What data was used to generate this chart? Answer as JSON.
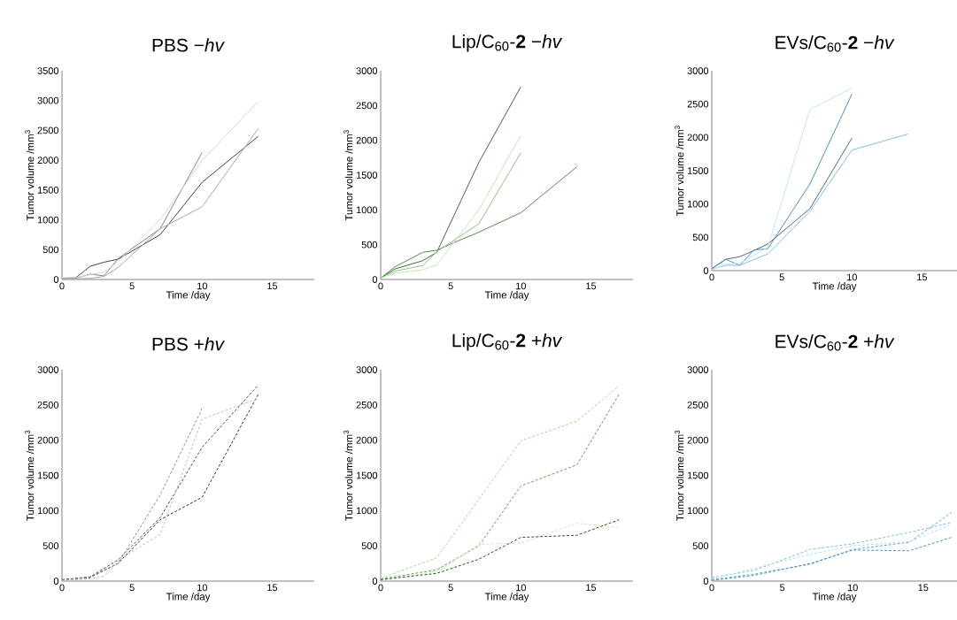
{
  "chart_data": [
    {
      "type": "line",
      "title": "PBS −*hv*",
      "xlabel": "Time /day",
      "ylabel": "Tumor volume /mm$^{3}$",
      "xlim": [
        0,
        18
      ],
      "xticks": [
        0,
        5,
        10,
        15
      ],
      "ylim": [
        0,
        3500
      ],
      "yticks": [
        0,
        500,
        1000,
        1500,
        2000,
        2500,
        3000,
        3500
      ],
      "line_style": "solid",
      "series": [
        {
          "color": "#404040",
          "x": [
            0,
            1,
            2,
            3,
            4,
            7,
            10,
            14
          ],
          "values": [
            20,
            30,
            220,
            290,
            340,
            750,
            1630,
            2400
          ]
        },
        {
          "color": "#858585",
          "x": [
            0,
            1,
            2,
            3,
            4,
            7,
            10
          ],
          "values": [
            20,
            20,
            90,
            60,
            350,
            850,
            2130
          ]
        },
        {
          "color": "#a8a8a8",
          "x": [
            0,
            1,
            2,
            3,
            4,
            7,
            10,
            14
          ],
          "values": [
            10,
            10,
            20,
            50,
            200,
            850,
            1220,
            2530
          ]
        },
        {
          "color": "#d4d4d4",
          "x": [
            0,
            1,
            2,
            3,
            4,
            7,
            10,
            14
          ],
          "values": [
            30,
            30,
            80,
            120,
            300,
            1000,
            2000,
            2980
          ]
        }
      ]
    },
    {
      "type": "line",
      "title": "Lip/C$_{60}$-**2** −*hv*",
      "xlabel": "Time /day",
      "ylabel": "Tumor volume /mm$^{3}$",
      "xlim": [
        0,
        18
      ],
      "xticks": [
        0,
        5,
        10,
        15
      ],
      "ylim": [
        0,
        3000
      ],
      "yticks": [
        0,
        500,
        1000,
        1500,
        2000,
        2500,
        3000
      ],
      "line_style": "solid",
      "series": [
        {
          "color": "#3d6b3d",
          "x": [
            0,
            1,
            3,
            4,
            7,
            10
          ],
          "values": [
            20,
            150,
            270,
            390,
            1680,
            2770
          ]
        },
        {
          "color": "#5a8a50",
          "x": [
            0,
            1,
            3,
            4,
            5,
            7,
            10,
            14
          ],
          "values": [
            20,
            180,
            390,
            420,
            510,
            680,
            960,
            1620
          ]
        },
        {
          "color": "#90c080",
          "x": [
            0,
            1,
            3,
            4,
            7,
            10
          ],
          "values": [
            20,
            120,
            200,
            400,
            800,
            1820
          ]
        },
        {
          "color": "#c4e4b4",
          "x": [
            0,
            1,
            3,
            4,
            7,
            10
          ],
          "values": [
            20,
            90,
            140,
            210,
            1000,
            2070
          ]
        }
      ]
    },
    {
      "type": "line",
      "title": "EVs/C$_{60}$-**2** −*hv*",
      "xlabel": "Time /day",
      "ylabel": "Tumor volume /mm$^{3}$",
      "xlim": [
        0,
        17.5
      ],
      "xticks": [
        0,
        5,
        10,
        15
      ],
      "ylim": [
        0,
        3000
      ],
      "yticks": [
        0,
        500,
        1000,
        1500,
        2000,
        2500,
        3000
      ],
      "line_style": "solid",
      "series": [
        {
          "color": "#4a6a80",
          "x": [
            0,
            1,
            2,
            3,
            4,
            7,
            10
          ],
          "values": [
            30,
            170,
            210,
            300,
            400,
            930,
            1990
          ]
        },
        {
          "color": "#4a90b8",
          "x": [
            0,
            1,
            2,
            3,
            4,
            7,
            10
          ],
          "values": [
            30,
            170,
            80,
            310,
            330,
            1300,
            2650
          ]
        },
        {
          "color": "#80c0e0",
          "x": [
            0,
            1,
            2,
            4,
            7,
            10,
            14
          ],
          "values": [
            20,
            80,
            80,
            250,
            890,
            1810,
            2050
          ]
        },
        {
          "color": "#c4e6f4",
          "x": [
            0,
            1,
            2,
            4,
            7,
            10
          ],
          "values": [
            10,
            100,
            110,
            350,
            2420,
            2740
          ]
        }
      ]
    },
    {
      "type": "line",
      "title": "PBS +*hv*",
      "xlabel": "Time /day",
      "ylabel": "Tumor volume /mm$^{3}$",
      "xlim": [
        0,
        18
      ],
      "xticks": [
        0,
        5,
        10,
        15
      ],
      "ylim": [
        0,
        3000
      ],
      "yticks": [
        0,
        500,
        1000,
        1500,
        2000,
        2500,
        3000
      ],
      "line_style": "dashed",
      "series": [
        {
          "color": "#303030",
          "x": [
            0,
            2,
            4,
            7,
            10,
            14
          ],
          "values": [
            20,
            50,
            250,
            870,
            1190,
            2650
          ]
        },
        {
          "color": "#484848",
          "x": [
            0,
            2,
            4,
            7,
            10,
            14
          ],
          "values": [
            20,
            60,
            300,
            900,
            1900,
            2780
          ]
        },
        {
          "color": "#909090",
          "x": [
            0,
            2,
            4,
            7,
            10
          ],
          "values": [
            10,
            60,
            250,
            1220,
            2450
          ]
        },
        {
          "color": "#c0c0c0",
          "x": [
            0,
            2,
            3,
            4,
            5,
            7,
            10,
            14
          ],
          "values": [
            10,
            30,
            70,
            280,
            420,
            660,
            2300,
            2590
          ]
        }
      ]
    },
    {
      "type": "line",
      "title": "Lip/C$_{60}$-**2** +*hv*",
      "xlabel": "Time /day",
      "ylabel": "Tumor volume /mm$^{3}$",
      "xlim": [
        0,
        18
      ],
      "xticks": [
        0,
        5,
        10,
        15
      ],
      "ylim": [
        0,
        3000
      ],
      "yticks": [
        0,
        500,
        1000,
        1500,
        2000,
        2500,
        3000
      ],
      "line_style": "dashed",
      "series": [
        {
          "color": "#a0d890",
          "x": [
            0,
            4,
            10,
            14,
            17
          ],
          "values": [
            40,
            330,
            1990,
            2270,
            2770
          ]
        },
        {
          "color": "#60a050",
          "x": [
            0,
            4,
            7,
            10,
            14,
            17
          ],
          "values": [
            30,
            160,
            500,
            1350,
            1650,
            2650
          ]
        },
        {
          "color": "#c8e8b8",
          "x": [
            0,
            4,
            7,
            10,
            14,
            17
          ],
          "values": [
            20,
            130,
            520,
            540,
            820,
            760
          ]
        },
        {
          "color": "#305030",
          "x": [
            0,
            4,
            7,
            10,
            14,
            17
          ],
          "values": [
            20,
            110,
            310,
            620,
            650,
            870
          ]
        }
      ]
    },
    {
      "type": "line",
      "title": "EVs/C$_{60}$-**2** +*hv*",
      "xlabel": "Time /day",
      "ylabel": "Tumor volume /mm$^{3}$",
      "xlim": [
        0,
        17.4
      ],
      "xticks": [
        0,
        5,
        10,
        15
      ],
      "ylim": [
        0,
        3000
      ],
      "yticks": [
        0,
        500,
        1000,
        1500,
        2000,
        2500,
        3000
      ],
      "line_style": "dashed",
      "series": [
        {
          "color": "#80c0e0",
          "x": [
            0,
            3,
            7,
            10,
            14,
            17
          ],
          "values": [
            50,
            150,
            450,
            530,
            690,
            830
          ]
        },
        {
          "color": "#60a8d0",
          "x": [
            0,
            3,
            7,
            10,
            14,
            17
          ],
          "values": [
            20,
            100,
            240,
            450,
            550,
            970
          ]
        },
        {
          "color": "#4a90c0",
          "x": [
            0,
            3,
            7,
            10,
            14,
            17
          ],
          "values": [
            10,
            80,
            250,
            440,
            430,
            620
          ]
        },
        {
          "color": "#b0dcf0",
          "x": [
            0,
            4,
            7,
            10,
            14,
            17
          ],
          "values": [
            30,
            230,
            380,
            500,
            560,
            800
          ]
        }
      ]
    }
  ]
}
